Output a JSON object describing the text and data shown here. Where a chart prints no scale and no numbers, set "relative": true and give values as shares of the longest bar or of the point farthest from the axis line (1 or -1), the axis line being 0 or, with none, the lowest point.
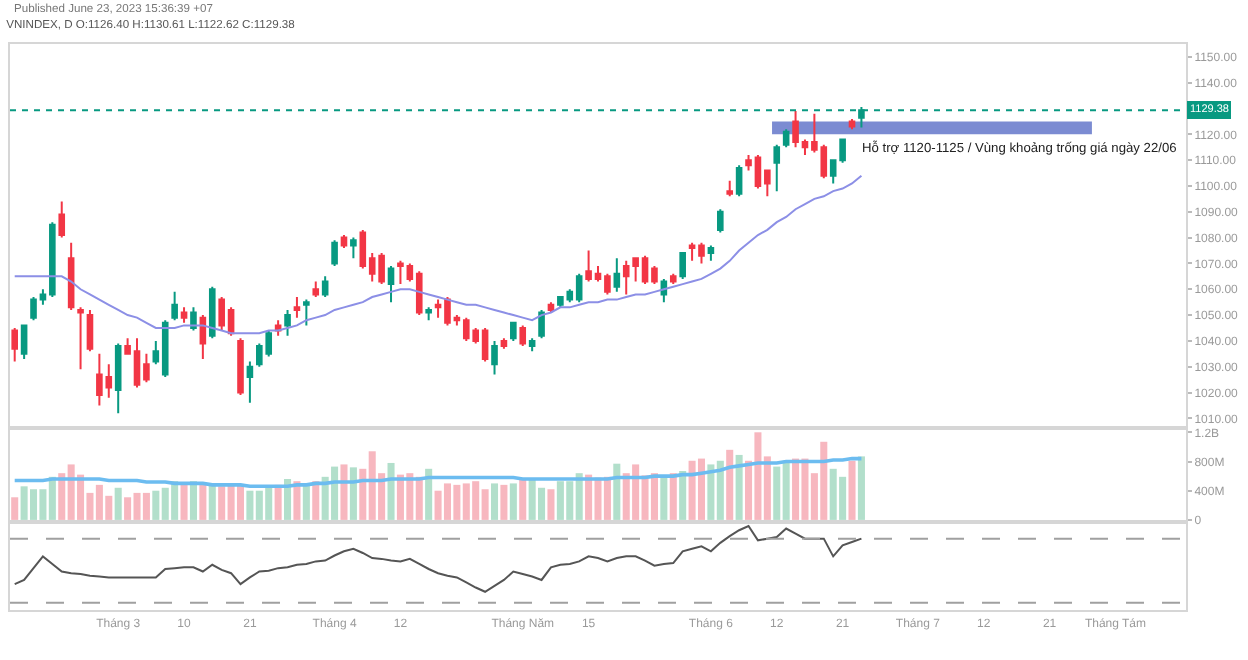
{
  "chart_data": [
    {
      "type": "candlestick",
      "title": "VNINDEX, D O:1126.40 H:1130.61 L:1122.62 C:1129.38",
      "annotations": [
        "Published June 23, 2023 15:36:39 +07"
      ],
      "categories": [
        null,
        null,
        null,
        null,
        null,
        null,
        null,
        null,
        null,
        null,
        null,
        null,
        null,
        null,
        null,
        null,
        null,
        null,
        null,
        null,
        null,
        null,
        null,
        null,
        null,
        null,
        null,
        null,
        null,
        null,
        null,
        null,
        null,
        null,
        null,
        null,
        null,
        null,
        null,
        null,
        null,
        null,
        null,
        null,
        null,
        null,
        null,
        null,
        null,
        null,
        null,
        null,
        null,
        null,
        null,
        null,
        null,
        null,
        null,
        null,
        null,
        null,
        null,
        null,
        null,
        null,
        null,
        null,
        null,
        null,
        null,
        null,
        null,
        null,
        null,
        null,
        null,
        null,
        null,
        null,
        null,
        null,
        null,
        null,
        null,
        null,
        null,
        null,
        null,
        null,
        null,
        null,
        null,
        null,
        null,
        null,
        null,
        null,
        null,
        null,
        null,
        null,
        null,
        null,
        null,
        null,
        null,
        null,
        null,
        null,
        null,
        null,
        null,
        null,
        null,
        null,
        null,
        null,
        null,
        null,
        null,
        null,
        null,
        null,
        null
      ],
      "ohlc": [
        [
          1044,
          1045,
          1032,
          1037
        ],
        [
          1035,
          1046,
          1033,
          1046
        ],
        [
          1049,
          1057,
          1048,
          1056
        ],
        [
          1056,
          1060,
          1054,
          1058
        ],
        [
          1058,
          1086,
          1057,
          1085
        ],
        [
          1089,
          1094,
          1080,
          1081
        ],
        [
          1072,
          1078,
          1052,
          1053
        ],
        [
          1052,
          1053,
          1029,
          1051
        ],
        [
          1050,
          1052,
          1036,
          1037
        ],
        [
          1027,
          1035,
          1015,
          1019
        ],
        [
          1026,
          1031,
          1018,
          1022
        ],
        [
          1021,
          1039,
          1012,
          1038
        ],
        [
          1038,
          1041,
          1035,
          1035
        ],
        [
          1036,
          1041,
          1022,
          1023
        ],
        [
          1031,
          1035,
          1024,
          1025
        ],
        [
          1032,
          1040,
          1031,
          1036
        ],
        [
          1027,
          1048,
          1026,
          1047
        ],
        [
          1049,
          1059,
          1048,
          1054
        ],
        [
          1051,
          1053,
          1047,
          1049
        ],
        [
          1045,
          1053,
          1044,
          1051
        ],
        [
          1049,
          1050,
          1033,
          1039
        ],
        [
          1042,
          1061,
          1041,
          1060
        ],
        [
          1056,
          1057,
          1044,
          1046
        ],
        [
          1052,
          1053,
          1042,
          1043
        ],
        [
          1040,
          1041,
          1019,
          1020
        ],
        [
          1026,
          1032,
          1016,
          1030
        ],
        [
          1031,
          1039,
          1030,
          1038
        ],
        [
          1035,
          1044,
          1034,
          1043
        ],
        [
          1046,
          1048,
          1042,
          1044
        ],
        [
          1046,
          1052,
          1042,
          1050
        ],
        [
          1053,
          1057,
          1049,
          1052
        ],
        [
          1054,
          1056,
          1046,
          1055
        ],
        [
          1060,
          1063,
          1057,
          1058
        ],
        [
          1058,
          1065,
          1057,
          1063
        ],
        [
          1070,
          1079,
          1069,
          1078
        ],
        [
          1080,
          1081,
          1076,
          1077
        ],
        [
          1077,
          1080,
          1072,
          1079
        ],
        [
          1082,
          1083,
          1068,
          1069
        ],
        [
          1072,
          1074,
          1063,
          1066
        ],
        [
          1073,
          1074,
          1062,
          1063
        ],
        [
          1062,
          1069,
          1055,
          1068
        ],
        [
          1070,
          1071,
          1062,
          1069
        ],
        [
          1069,
          1070,
          1063,
          1064
        ],
        [
          1066,
          1067,
          1050,
          1051
        ],
        [
          1051,
          1053,
          1048,
          1052
        ],
        [
          1054,
          1056,
          1049,
          1053
        ],
        [
          1056,
          1057,
          1046,
          1047
        ],
        [
          1049,
          1050,
          1046,
          1048
        ],
        [
          1048,
          1049,
          1040,
          1041
        ],
        [
          1044,
          1045,
          1039,
          1040
        ],
        [
          1044,
          1045,
          1032,
          1033
        ],
        [
          1031,
          1040,
          1027,
          1038
        ],
        [
          1040,
          1041,
          1037,
          1038
        ],
        [
          1041,
          1047,
          1040,
          1047
        ],
        [
          1045,
          1046,
          1038,
          1039
        ],
        [
          1038,
          1041,
          1036,
          1040
        ],
        [
          1042,
          1052,
          1041,
          1051
        ],
        [
          1054,
          1055,
          1051,
          1052
        ],
        [
          1054,
          1057,
          1053,
          1057
        ],
        [
          1056,
          1060,
          1055,
          1059
        ],
        [
          1056,
          1066,
          1055,
          1065
        ],
        [
          1067,
          1075,
          1063,
          1064
        ],
        [
          1066,
          1069,
          1063,
          1064
        ],
        [
          1065,
          1066,
          1058,
          1059
        ],
        [
          1061,
          1072,
          1059,
          1066
        ],
        [
          1069,
          1071,
          1058,
          1065
        ],
        [
          1072,
          1072,
          1063,
          1069
        ],
        [
          1072,
          1073,
          1062,
          1063
        ],
        [
          1068,
          1069,
          1062,
          1063
        ],
        [
          1058,
          1064,
          1055,
          1063
        ],
        [
          1065,
          1066,
          1062,
          1063
        ],
        [
          1065,
          1074,
          1064,
          1074
        ],
        [
          1077,
          1078,
          1071,
          1076
        ],
        [
          1077,
          1078,
          1070,
          1073
        ],
        [
          1074,
          1077,
          1071,
          1076
        ],
        [
          1083,
          1091,
          1082,
          1090
        ],
        [
          1098,
          1102,
          1096,
          1097
        ],
        [
          1097,
          1108,
          1096,
          1107
        ],
        [
          1110,
          1112,
          1106,
          1108
        ],
        [
          1111,
          1112,
          1099,
          1100
        ],
        [
          1106,
          1106,
          1096,
          1101
        ],
        [
          1109,
          1116,
          1098,
          1115
        ],
        [
          1116,
          1122,
          1115,
          1121
        ],
        [
          1125,
          1129,
          1115,
          1117
        ],
        [
          1117,
          1118,
          1112,
          1115
        ],
        [
          1117,
          1128,
          1113,
          1114
        ],
        [
          1115,
          1116,
          1103,
          1104
        ],
        [
          1104,
          1110,
          1101,
          1110
        ],
        [
          1110,
          1118,
          1109,
          1118
        ],
        [
          1125,
          1126,
          1122,
          1123
        ],
        [
          1126.4,
          1130.61,
          1122.62,
          1129.38
        ],
        null,
        null,
        null,
        null,
        null,
        null,
        null,
        null,
        null,
        null,
        null,
        null,
        null,
        null,
        null,
        null,
        null,
        null,
        null,
        null,
        null,
        null,
        null,
        null,
        null,
        null,
        null,
        null,
        null,
        null,
        null,
        null,
        null,
        null
      ],
      "colors": [
        "#f23645",
        "#089981",
        "#089981",
        "#089981",
        "#089981",
        "#f23645",
        "#f23645",
        "#f23645",
        "#f23645",
        "#f23645",
        "#f23645",
        "#089981",
        "#f23645",
        "#f23645",
        "#f23645",
        "#089981",
        "#089981",
        "#089981",
        "#f23645",
        "#089981",
        "#f23645",
        "#089981",
        "#f23645",
        "#f23645",
        "#f23645",
        "#089981",
        "#089981",
        "#089981",
        "#f23645",
        "#089981",
        "#f23645",
        "#089981",
        "#f23645",
        "#089981",
        "#089981",
        "#f23645",
        "#089981",
        "#f23645",
        "#f23645",
        "#f23645",
        "#089981",
        "#f23645",
        "#f23645",
        "#f23645",
        "#089981",
        "#f23645",
        "#f23645",
        "#f23645",
        "#f23645",
        "#f23645",
        "#f23645",
        "#089981",
        "#f23645",
        "#089981",
        "#f23645",
        "#089981",
        "#089981",
        "#f23645",
        "#089981",
        "#089981",
        "#089981",
        "#f23645",
        "#f23645",
        "#f23645",
        "#089981",
        "#f23645",
        "#f23645",
        "#f23645",
        "#f23645",
        "#089981",
        "#f23645",
        "#089981",
        "#f23645",
        "#f23645",
        "#089981",
        "#089981",
        "#f23645",
        "#089981",
        "#f23645",
        "#f23645",
        "#f23645",
        "#089981",
        "#089981",
        "#f23645",
        "#f23645",
        "#f23645",
        "#f23645",
        "#089981",
        "#089981",
        "#f23645",
        "#089981",
        null,
        null,
        null,
        null,
        null,
        null,
        null,
        null,
        null,
        null,
        null,
        null,
        null,
        null,
        null,
        null,
        null,
        null,
        null,
        null,
        null,
        null,
        null,
        null,
        null,
        null,
        null,
        null,
        null,
        null,
        null,
        null,
        null,
        null
      ],
      "series": [
        {
          "type": "line",
          "color": "#8c8fe6",
          "values": [
            1065,
            1065,
            1065,
            1065,
            1065,
            1065,
            1063,
            1060,
            1058,
            1056,
            1054,
            1052,
            1050,
            1049,
            1047,
            1045,
            1045,
            1045,
            1046,
            1046,
            1046,
            1045,
            1044,
            1043,
            1043,
            1043,
            1043,
            1044,
            1044,
            1045,
            1046,
            1048,
            1049,
            1050,
            1052,
            1053,
            1054,
            1055,
            1057,
            1058,
            1059,
            1060,
            1060,
            1059,
            1058,
            1057,
            1056,
            1055,
            1054,
            1054,
            1053,
            1052,
            1051,
            1050,
            1049,
            1048,
            1050,
            1051,
            1053,
            1053,
            1054,
            1055,
            1055,
            1056,
            1056,
            1057,
            1058,
            1058,
            1059,
            1060,
            1061,
            1062,
            1063,
            1064,
            1066,
            1068,
            1071,
            1075,
            1078,
            1081,
            1083,
            1086,
            1088,
            1091,
            1093,
            1095,
            1096,
            1098,
            1099,
            1101,
            1104,
            null,
            null,
            null,
            null,
            null,
            null,
            null,
            null,
            null,
            null,
            null,
            null,
            null,
            null,
            null,
            null,
            null,
            null,
            null,
            null,
            null,
            null,
            null,
            null,
            null,
            null,
            null,
            null,
            null,
            null,
            null,
            null,
            null,
            null
          ]
        }
      ],
      "ylim": [
        1007,
        1155
      ],
      "yticks": [
        {
          "value": 1010,
          "label": "1010.00"
        },
        {
          "value": 1020,
          "label": "1020.00"
        },
        {
          "value": 1030,
          "label": "1030.00"
        },
        {
          "value": 1040,
          "label": "1040.00"
        },
        {
          "value": 1050,
          "label": "1050.00"
        },
        {
          "value": 1060,
          "label": "1060.00"
        },
        {
          "value": 1070,
          "label": "1070.00"
        },
        {
          "value": 1080,
          "label": "1080.00"
        },
        {
          "value": 1090,
          "label": "1090.00"
        },
        {
          "value": 1100,
          "label": "1100.00"
        },
        {
          "value": 1110,
          "label": "1110.00"
        },
        {
          "value": 1120,
          "label": "1120.00"
        },
        {
          "value": 1140,
          "label": "1140.00"
        },
        {
          "value": 1150,
          "label": "1150.00"
        }
      ],
      "tick_labels": "y",
      "ref_lines": [
        {
          "axis": "y",
          "value": 1129.38,
          "label": "1129.38",
          "color": "#089981",
          "line_style": "dotted"
        }
      ],
      "bands": [
        {
          "axis": "y",
          "from": 1120,
          "to": 1125,
          "color": "#7b8bd2",
          "label": "Hỗ trợ 1120-1125 / Vùng khoảng trống giá ngày 22/06"
        }
      ]
    },
    {
      "type": "bar",
      "categories": [
        null,
        null,
        null,
        null,
        null,
        null,
        null,
        null,
        null,
        null,
        null,
        null,
        null,
        null,
        null,
        null,
        null,
        null,
        null,
        null,
        null,
        null,
        null,
        null,
        null,
        null,
        null,
        null,
        null,
        null,
        null,
        null,
        null,
        null,
        null,
        null,
        null,
        null,
        null,
        null,
        null,
        null,
        null,
        null,
        null,
        null,
        null,
        null,
        null,
        null,
        null,
        null,
        null,
        null,
        null,
        null,
        null,
        null,
        null,
        null,
        null,
        null,
        null,
        null,
        null,
        null,
        null,
        null,
        null,
        null,
        null,
        null,
        null,
        null,
        null,
        null,
        null,
        null,
        null,
        null,
        null,
        null,
        null,
        null,
        null,
        null,
        null,
        null,
        null,
        null,
        null,
        null,
        null,
        null,
        null,
        null,
        null,
        null,
        null,
        null,
        null,
        null,
        null,
        null,
        null,
        null,
        null,
        null,
        null,
        null,
        null,
        null,
        null,
        null,
        null,
        null,
        null,
        null,
        null,
        null,
        null,
        null,
        null,
        null,
        null
      ],
      "series": [
        {
          "type": "bar",
          "values": [
            310000000,
            460000000,
            420000000,
            420000000,
            590000000,
            640000000,
            760000000,
            620000000,
            370000000,
            480000000,
            330000000,
            440000000,
            310000000,
            370000000,
            370000000,
            400000000,
            440000000,
            530000000,
            480000000,
            530000000,
            510000000,
            500000000,
            460000000,
            480000000,
            480000000,
            400000000,
            400000000,
            440000000,
            480000000,
            560000000,
            530000000,
            480000000,
            530000000,
            590000000,
            730000000,
            760000000,
            720000000,
            700000000,
            940000000,
            640000000,
            780000000,
            620000000,
            640000000,
            590000000,
            700000000,
            400000000,
            500000000,
            480000000,
            500000000,
            530000000,
            420000000,
            500000000,
            480000000,
            500000000,
            570000000,
            570000000,
            440000000,
            420000000,
            530000000,
            530000000,
            640000000,
            620000000,
            580000000,
            590000000,
            770000000,
            640000000,
            760000000,
            610000000,
            640000000,
            590000000,
            640000000,
            670000000,
            810000000,
            840000000,
            760000000,
            810000000,
            960000000,
            890000000,
            810000000,
            1200000000,
            870000000,
            730000000,
            810000000,
            840000000,
            840000000,
            640000000,
            1070000000,
            700000000,
            590000000,
            810000000,
            870000000,
            null,
            null,
            null,
            null,
            null,
            null,
            null,
            null,
            null,
            null,
            null,
            null,
            null,
            null,
            null,
            null,
            null,
            null,
            null,
            null,
            null,
            null,
            null,
            null,
            null,
            null,
            null,
            null,
            null,
            null,
            null,
            null,
            null,
            null
          ],
          "colors": [
            "#f7b7bf",
            "#b2dfcb",
            "#b2dfcb",
            "#b2dfcb",
            "#b2dfcb",
            "#f7b7bf",
            "#f7b7bf",
            "#f7b7bf",
            "#f7b7bf",
            "#f7b7bf",
            "#f7b7bf",
            "#b2dfcb",
            "#f7b7bf",
            "#f7b7bf",
            "#f7b7bf",
            "#b2dfcb",
            "#b2dfcb",
            "#b2dfcb",
            "#f7b7bf",
            "#b2dfcb",
            "#f7b7bf",
            "#b2dfcb",
            "#f7b7bf",
            "#f7b7bf",
            "#f7b7bf",
            "#b2dfcb",
            "#b2dfcb",
            "#b2dfcb",
            "#f7b7bf",
            "#b2dfcb",
            "#f7b7bf",
            "#b2dfcb",
            "#f7b7bf",
            "#b2dfcb",
            "#b2dfcb",
            "#f7b7bf",
            "#b2dfcb",
            "#f7b7bf",
            "#f7b7bf",
            "#f7b7bf",
            "#b2dfcb",
            "#f7b7bf",
            "#f7b7bf",
            "#f7b7bf",
            "#b2dfcb",
            "#f7b7bf",
            "#f7b7bf",
            "#f7b7bf",
            "#f7b7bf",
            "#f7b7bf",
            "#f7b7bf",
            "#b2dfcb",
            "#f7b7bf",
            "#b2dfcb",
            "#f7b7bf",
            "#b2dfcb",
            "#b2dfcb",
            "#f7b7bf",
            "#b2dfcb",
            "#b2dfcb",
            "#b2dfcb",
            "#f7b7bf",
            "#f7b7bf",
            "#f7b7bf",
            "#b2dfcb",
            "#f7b7bf",
            "#f7b7bf",
            "#f7b7bf",
            "#f7b7bf",
            "#b2dfcb",
            "#f7b7bf",
            "#b2dfcb",
            "#f7b7bf",
            "#f7b7bf",
            "#b2dfcb",
            "#b2dfcb",
            "#f7b7bf",
            "#b2dfcb",
            "#f7b7bf",
            "#f7b7bf",
            "#f7b7bf",
            "#b2dfcb",
            "#b2dfcb",
            "#f7b7bf",
            "#f7b7bf",
            "#f7b7bf",
            "#f7b7bf",
            "#b2dfcb",
            "#b2dfcb",
            "#f7b7bf",
            "#b2dfcb",
            null,
            null,
            null,
            null,
            null,
            null,
            null,
            null,
            null,
            null,
            null,
            null,
            null,
            null,
            null,
            null,
            null,
            null,
            null,
            null,
            null,
            null,
            null,
            null,
            null,
            null,
            null,
            null,
            null,
            null,
            null,
            null,
            null,
            null
          ]
        },
        {
          "type": "line",
          "color": "#6cbcf0",
          "values": [
            540000000,
            540000000,
            540000000,
            540000000,
            560000000,
            560000000,
            560000000,
            560000000,
            560000000,
            560000000,
            540000000,
            540000000,
            540000000,
            540000000,
            520000000,
            520000000,
            520000000,
            500000000,
            500000000,
            500000000,
            500000000,
            480000000,
            480000000,
            480000000,
            480000000,
            460000000,
            460000000,
            460000000,
            460000000,
            460000000,
            480000000,
            480000000,
            500000000,
            500000000,
            520000000,
            520000000,
            520000000,
            540000000,
            540000000,
            540000000,
            560000000,
            560000000,
            560000000,
            560000000,
            580000000,
            580000000,
            580000000,
            580000000,
            580000000,
            580000000,
            580000000,
            580000000,
            580000000,
            580000000,
            560000000,
            560000000,
            560000000,
            560000000,
            560000000,
            560000000,
            560000000,
            560000000,
            560000000,
            560000000,
            580000000,
            580000000,
            580000000,
            580000000,
            600000000,
            600000000,
            600000000,
            620000000,
            620000000,
            640000000,
            660000000,
            680000000,
            720000000,
            740000000,
            760000000,
            780000000,
            780000000,
            780000000,
            800000000,
            800000000,
            800000000,
            800000000,
            800000000,
            820000000,
            820000000,
            840000000,
            840000000,
            null,
            null,
            null,
            null,
            null,
            null,
            null,
            null,
            null,
            null,
            null,
            null,
            null,
            null,
            null,
            null,
            null,
            null,
            null,
            null,
            null,
            null,
            null,
            null,
            null,
            null,
            null,
            null,
            null,
            null,
            null,
            null,
            null,
            null
          ]
        }
      ],
      "ylim": [
        0,
        1230000000
      ],
      "yticks": [
        0,
        {
          "value": 400000000,
          "label": "400M"
        },
        {
          "value": 800000000,
          "label": "800M"
        },
        {
          "value": 1200000000,
          "label": "1.2B"
        }
      ],
      "tick_labels": "y"
    },
    {
      "type": "line",
      "relative": true,
      "categories": [
        null,
        null,
        null,
        null,
        null,
        null,
        null,
        null,
        null,
        null,
        null,
        "Tháng 3",
        null,
        null,
        null,
        null,
        null,
        null,
        "10",
        null,
        null,
        null,
        null,
        null,
        null,
        "21",
        null,
        null,
        null,
        null,
        null,
        null,
        null,
        null,
        "Tháng 4",
        null,
        null,
        null,
        null,
        null,
        null,
        "12",
        null,
        null,
        null,
        null,
        null,
        null,
        null,
        null,
        null,
        null,
        null,
        null,
        "Tháng Năm",
        null,
        null,
        null,
        null,
        null,
        null,
        "15",
        null,
        null,
        null,
        null,
        null,
        null,
        null,
        null,
        null,
        null,
        null,
        null,
        "Tháng 6",
        null,
        null,
        null,
        null,
        null,
        null,
        "12",
        null,
        null,
        null,
        null,
        null,
        null,
        "21",
        null,
        null,
        null,
        null,
        null,
        null,
        null,
        "Tháng 7",
        null,
        null,
        null,
        null,
        null,
        null,
        "12",
        null,
        null,
        null,
        null,
        null,
        null,
        "21",
        null,
        null,
        null,
        null,
        null,
        null,
        "Tháng Tám",
        null,
        null,
        null,
        null,
        null,
        null,
        null
      ],
      "series": [
        {
          "color": "#555555",
          "values": [
            0.31,
            0.36,
            0.5,
            0.64,
            0.55,
            0.46,
            0.44,
            0.43,
            0.41,
            0.4,
            0.39,
            0.39,
            0.39,
            0.39,
            0.39,
            0.39,
            0.49,
            0.5,
            0.51,
            0.51,
            0.46,
            0.54,
            0.48,
            0.44,
            0.31,
            0.39,
            0.46,
            0.47,
            0.5,
            0.51,
            0.54,
            0.55,
            0.58,
            0.59,
            0.65,
            0.7,
            0.73,
            0.68,
            0.62,
            0.61,
            0.59,
            0.58,
            0.61,
            0.55,
            0.49,
            0.44,
            0.41,
            0.39,
            0.33,
            0.27,
            0.22,
            0.29,
            0.36,
            0.46,
            0.43,
            0.4,
            0.36,
            0.51,
            0.54,
            0.55,
            0.58,
            0.64,
            0.62,
            0.58,
            0.62,
            0.64,
            0.64,
            0.59,
            0.53,
            0.55,
            0.56,
            0.7,
            0.73,
            0.76,
            0.7,
            0.8,
            0.88,
            0.95,
            1,
            0.83,
            0.85,
            0.87,
            0.97,
            0.91,
            0.85,
            0.85,
            0.85,
            0.64,
            0.77,
            0.81,
            0.85,
            null,
            null,
            null,
            null,
            null,
            null,
            null,
            null,
            null,
            null,
            null,
            null,
            null,
            null,
            null,
            null,
            null,
            null,
            null,
            null,
            null,
            null,
            null,
            null,
            null,
            null,
            null,
            null,
            null,
            null,
            null,
            null,
            null,
            null
          ]
        }
      ],
      "tick_labels": "x",
      "ref_lines": [
        {
          "axis": "y",
          "value": 0.85,
          "color": "#a0a0a0",
          "line_style": "dashed"
        },
        {
          "axis": "y",
          "value": 0.09,
          "color": "#a0a0a0",
          "line_style": "dashed"
        }
      ]
    }
  ]
}
